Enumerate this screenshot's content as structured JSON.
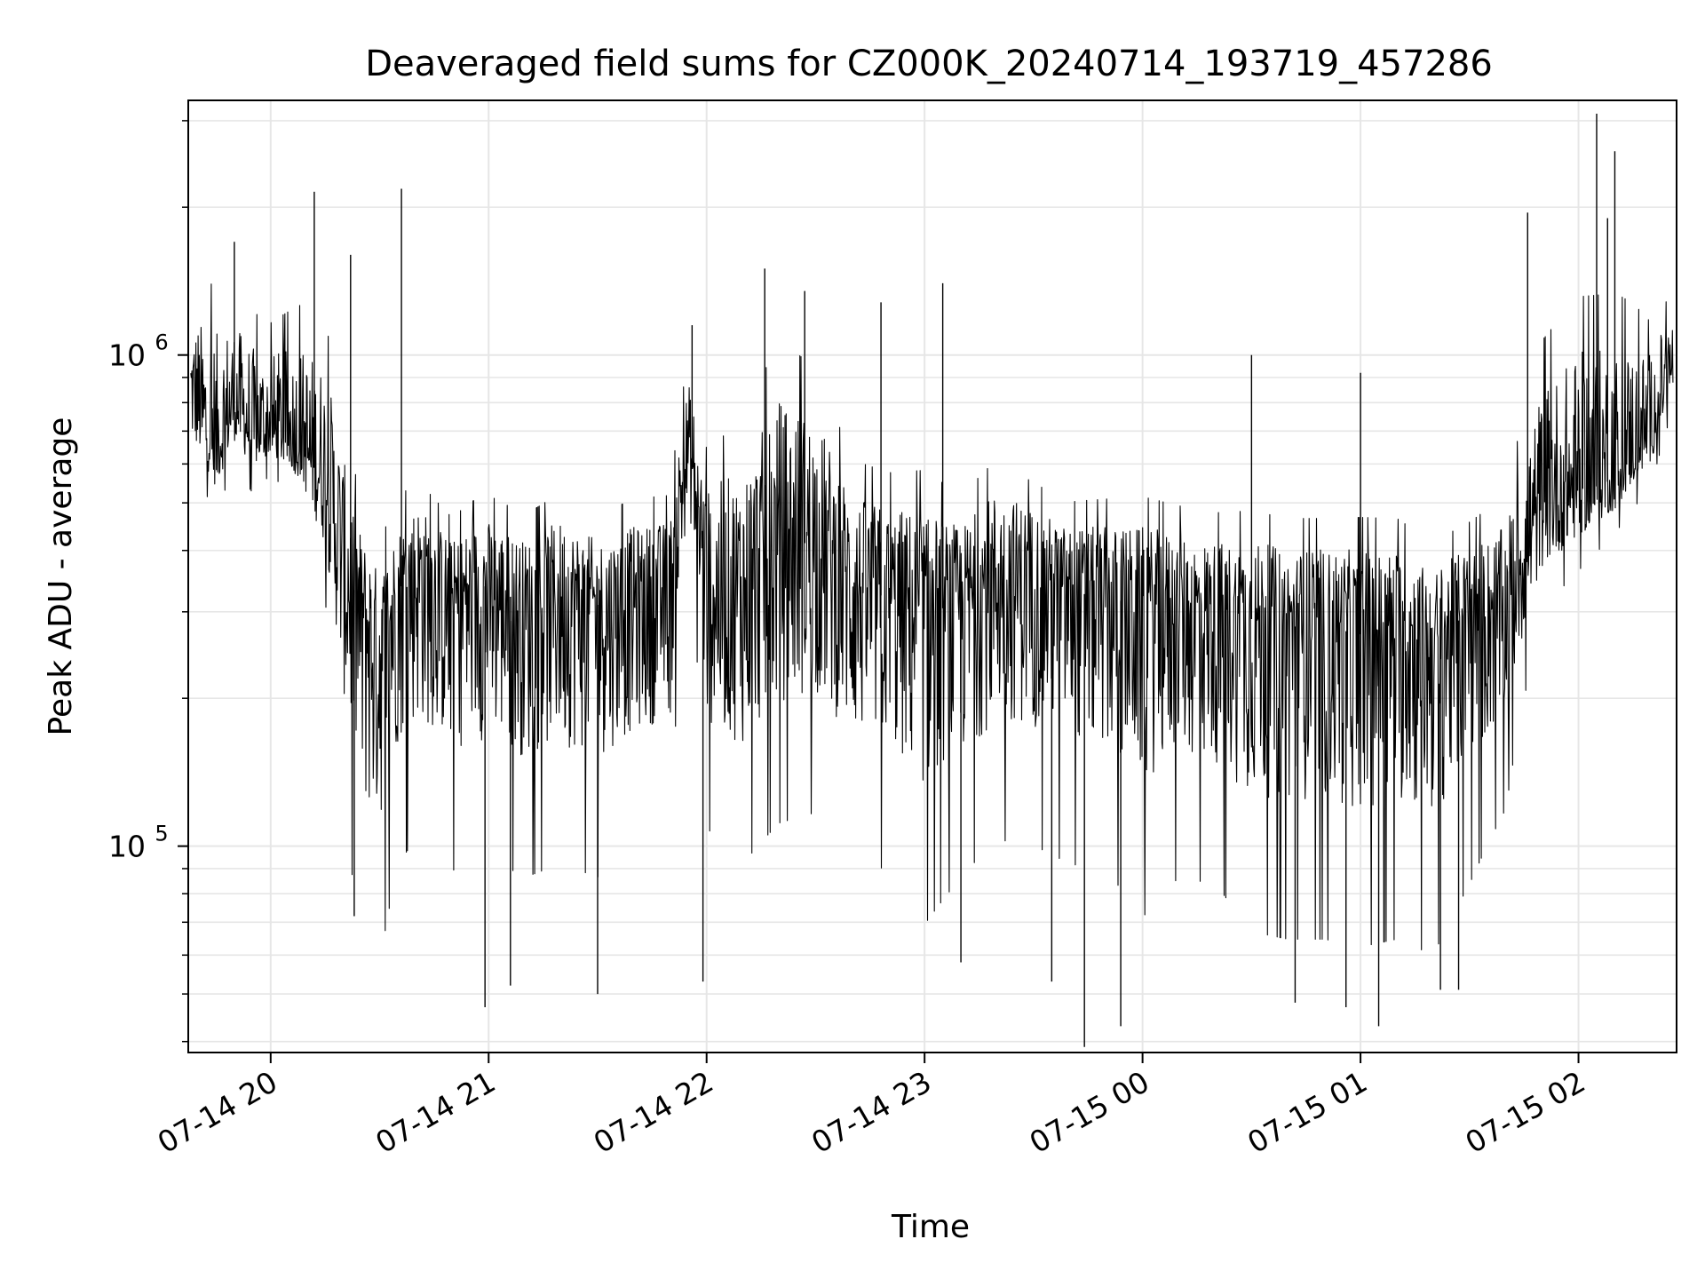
{
  "chart_data": {
    "type": "line",
    "title": "Deaveraged field sums for CZ000K_20240714_193719_457286",
    "xlabel": "Time",
    "ylabel": "Peak ADU - average",
    "y_scale": "log",
    "ylim": [
      38000,
      3300000
    ],
    "xlim": [
      "2024-07-14 19:37:19",
      "2024-07-15 02:27:00"
    ],
    "grid": true,
    "x_ticks": [
      {
        "t": "2024-07-14 20:00",
        "label": "07-14 20"
      },
      {
        "t": "2024-07-14 21:00",
        "label": "07-14 21"
      },
      {
        "t": "2024-07-14 22:00",
        "label": "07-14 22"
      },
      {
        "t": "2024-07-14 23:00",
        "label": "07-14 23"
      },
      {
        "t": "2024-07-15 00:00",
        "label": "07-15 00"
      },
      {
        "t": "2024-07-15 01:00",
        "label": "07-15 01"
      },
      {
        "t": "2024-07-15 02:00",
        "label": "07-15 02"
      }
    ],
    "y_ticks": [
      {
        "value": 100000,
        "base": "10",
        "exp": "5"
      },
      {
        "value": 1000000,
        "base": "10",
        "exp": "6"
      }
    ],
    "series": [
      {
        "color": "#000000",
        "x": [
          "2024-07-14 19:38",
          "2024-07-14 19:45",
          "2024-07-14 19:50",
          "2024-07-14 19:55",
          "2024-07-14 20:00",
          "2024-07-14 20:08",
          "2024-07-14 20:15",
          "2024-07-14 20:20",
          "2024-07-14 20:25",
          "2024-07-14 20:30",
          "2024-07-14 20:35",
          "2024-07-14 20:40",
          "2024-07-14 20:45",
          "2024-07-14 20:50",
          "2024-07-14 20:55",
          "2024-07-14 21:00",
          "2024-07-14 21:10",
          "2024-07-14 21:20",
          "2024-07-14 21:30",
          "2024-07-14 21:40",
          "2024-07-14 21:50",
          "2024-07-14 21:55",
          "2024-07-14 22:00",
          "2024-07-14 22:10",
          "2024-07-14 22:20",
          "2024-07-14 22:30",
          "2024-07-14 22:40",
          "2024-07-14 22:50",
          "2024-07-14 23:00",
          "2024-07-14 23:10",
          "2024-07-14 23:20",
          "2024-07-14 23:30",
          "2024-07-14 23:40",
          "2024-07-14 23:50",
          "2024-07-15 00:00",
          "2024-07-15 00:10",
          "2024-07-15 00:20",
          "2024-07-15 00:30",
          "2024-07-15 00:40",
          "2024-07-15 00:50",
          "2024-07-15 01:00",
          "2024-07-15 01:10",
          "2024-07-15 01:20",
          "2024-07-15 01:30",
          "2024-07-15 01:40",
          "2024-07-15 01:50",
          "2024-07-15 02:00",
          "2024-07-15 02:10",
          "2024-07-15 02:20",
          "2024-07-15 02:26"
        ],
        "y": [
          820000,
          620000,
          800000,
          680000,
          700000,
          650000,
          560000,
          380000,
          300000,
          250000,
          330000,
          370000,
          350000,
          320000,
          330000,
          340000,
          310000,
          330000,
          310000,
          320000,
          340000,
          650000,
          330000,
          330000,
          400000,
          420000,
          340000,
          320000,
          300000,
          310000,
          370000,
          360000,
          330000,
          320000,
          310000,
          310000,
          300000,
          290000,
          280000,
          280000,
          270000,
          280000,
          260000,
          300000,
          310000,
          480000,
          520000,
          560000,
          700000,
          950000
        ],
        "spread_low": [
          0.8,
          0.85,
          0.82,
          0.85,
          0.88,
          0.85,
          0.7,
          0.5,
          0.35,
          0.4,
          0.45,
          0.45,
          0.45,
          0.45,
          0.45,
          0.45,
          0.45,
          0.45,
          0.45,
          0.5,
          0.5,
          0.75,
          0.5,
          0.45,
          0.45,
          0.45,
          0.45,
          0.45,
          0.4,
          0.45,
          0.45,
          0.45,
          0.45,
          0.45,
          0.4,
          0.45,
          0.45,
          0.4,
          0.4,
          0.4,
          0.4,
          0.4,
          0.4,
          0.45,
          0.55,
          0.75,
          0.8,
          0.85,
          0.85,
          0.88
        ],
        "spread_high": [
          1.5,
          1.9,
          1.5,
          1.6,
          1.5,
          1.7,
          1.8,
          1.7,
          1.5,
          1.5,
          1.4,
          1.4,
          1.35,
          1.35,
          1.4,
          1.4,
          1.4,
          1.45,
          1.4,
          1.45,
          1.4,
          1.4,
          1.7,
          1.9,
          2.2,
          1.9,
          1.6,
          1.6,
          1.7,
          1.5,
          1.5,
          1.4,
          1.4,
          1.45,
          1.5,
          1.45,
          1.45,
          1.5,
          1.5,
          1.5,
          1.55,
          1.5,
          1.45,
          1.4,
          1.5,
          1.9,
          2.1,
          2.0,
          1.5,
          1.3
        ],
        "spikes_up": [
          {
            "t": "2024-07-14 20:12",
            "y": 2150000
          },
          {
            "t": "2024-07-14 20:36",
            "y": 2180000
          },
          {
            "t": "2024-07-14 19:50",
            "y": 1700000
          },
          {
            "t": "2024-07-14 20:22",
            "y": 1600000
          },
          {
            "t": "2024-07-14 22:16",
            "y": 1500000
          },
          {
            "t": "2024-07-14 21:56",
            "y": 1150000
          },
          {
            "t": "2024-07-14 22:27",
            "y": 1350000
          },
          {
            "t": "2024-07-14 23:05",
            "y": 1400000
          },
          {
            "t": "2024-07-14 22:48",
            "y": 1280000
          },
          {
            "t": "2024-07-15 00:30",
            "y": 1000000
          },
          {
            "t": "2024-07-15 01:00",
            "y": 920000
          },
          {
            "t": "2024-07-15 01:46",
            "y": 1950000
          },
          {
            "t": "2024-07-15 02:05",
            "y": 3100000
          },
          {
            "t": "2024-07-15 02:10",
            "y": 2600000
          },
          {
            "t": "2024-07-15 02:08",
            "y": 1900000
          }
        ],
        "spikes_down": [
          {
            "t": "2024-07-14 20:23",
            "y": 72000
          },
          {
            "t": "2024-07-14 20:59",
            "y": 47000
          },
          {
            "t": "2024-07-14 21:06",
            "y": 52000
          },
          {
            "t": "2024-07-14 21:30",
            "y": 50000
          },
          {
            "t": "2024-07-14 21:59",
            "y": 53000
          },
          {
            "t": "2024-07-14 23:10",
            "y": 58000
          },
          {
            "t": "2024-07-14 23:35",
            "y": 53000
          },
          {
            "t": "2024-07-14 23:44",
            "y": 39000
          },
          {
            "t": "2024-07-14 23:54",
            "y": 43000
          },
          {
            "t": "2024-07-15 00:42",
            "y": 48000
          },
          {
            "t": "2024-07-15 00:56",
            "y": 47000
          },
          {
            "t": "2024-07-15 01:05",
            "y": 43000
          },
          {
            "t": "2024-07-15 01:22",
            "y": 51000
          },
          {
            "t": "2024-07-15 01:27",
            "y": 51000
          }
        ]
      }
    ]
  }
}
